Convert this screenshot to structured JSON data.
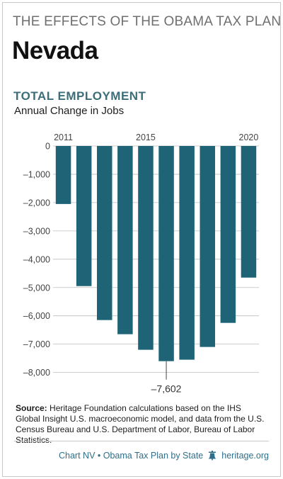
{
  "header": {
    "supertitle": "THE EFFECTS OF THE OBAMA TAX PLAN",
    "state": "Nevada"
  },
  "chart_data": {
    "type": "bar",
    "title": "TOTAL EMPLOYMENT",
    "subtitle": "Annual Change in Jobs",
    "x": [
      2011,
      2012,
      2013,
      2014,
      2015,
      2016,
      2017,
      2018,
      2019,
      2020
    ],
    "x_tick_labels": [
      {
        "year": 2011,
        "label": "2011"
      },
      {
        "year": 2015,
        "label": "2015"
      },
      {
        "year": 2020,
        "label": "2020"
      }
    ],
    "values": [
      -2050,
      -4950,
      -6150,
      -6650,
      -7200,
      -7602,
      -7550,
      -7100,
      -6250,
      -4650
    ],
    "ylim": [
      -9000,
      0
    ],
    "yticks": [
      {
        "value": 0,
        "label": "0"
      },
      {
        "value": -1000,
        "label": "–1,000"
      },
      {
        "value": -2000,
        "label": "–2,000"
      },
      {
        "value": -3000,
        "label": "–3,000"
      },
      {
        "value": -4000,
        "label": "–4,000"
      },
      {
        "value": -5000,
        "label": "–5,000"
      },
      {
        "value": -6000,
        "label": "–6,000"
      },
      {
        "value": -7000,
        "label": "–7,000"
      },
      {
        "value": -8000,
        "label": "–8,000"
      }
    ],
    "grid": true,
    "bar_color": "#1f6476",
    "annotation": {
      "year": 2016,
      "value": -7602,
      "label": "–7,602"
    }
  },
  "source": {
    "label": "Source:",
    "text": "Heritage Foundation calculations based on the IHS Global Insight U.S. macroeconomic model, and data from the U.S. Census Bureau and U.S. Department of Labor, Bureau of Labor Statistics."
  },
  "footer": {
    "chart": "Chart NV • Obama Tax Plan by State",
    "icon": "liberty-bell-icon",
    "site": "heritage.org"
  }
}
